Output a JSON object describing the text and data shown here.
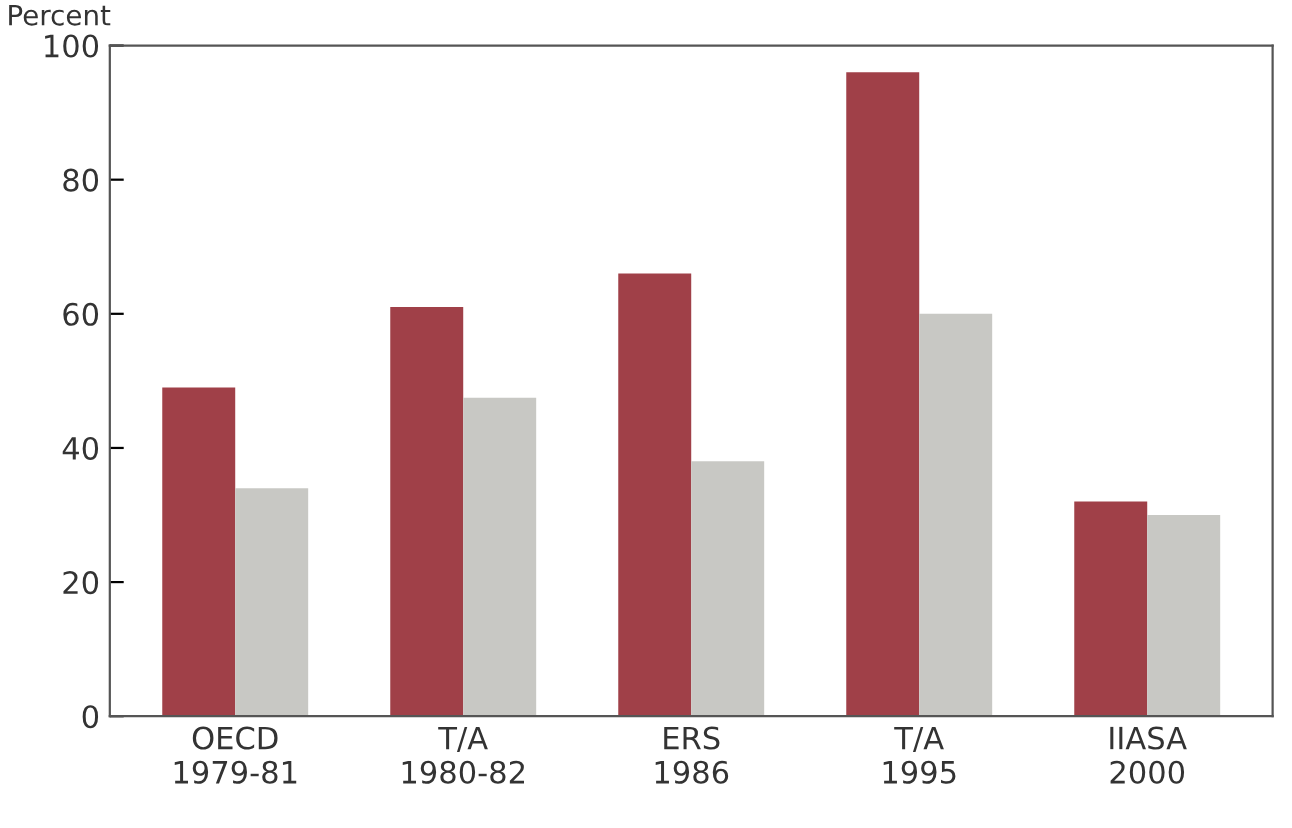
{
  "chart_data": {
    "type": "bar",
    "ylabel": "Percent",
    "categories": [
      "OECD\n1979-81",
      "T/A\n1980-82",
      "ERS\n1986",
      "T/A\n1995",
      "IIASA\n2000"
    ],
    "series": [
      {
        "color": "#a04048",
        "values": [
          49,
          61,
          66,
          96,
          32
        ]
      },
      {
        "color": "#c8c8c4",
        "values": [
          34,
          47.5,
          38,
          60,
          30
        ]
      }
    ],
    "ylim": [
      0,
      100
    ],
    "yticks": [
      0,
      20,
      40,
      60,
      80,
      100
    ],
    "grid": false,
    "legend": false
  }
}
